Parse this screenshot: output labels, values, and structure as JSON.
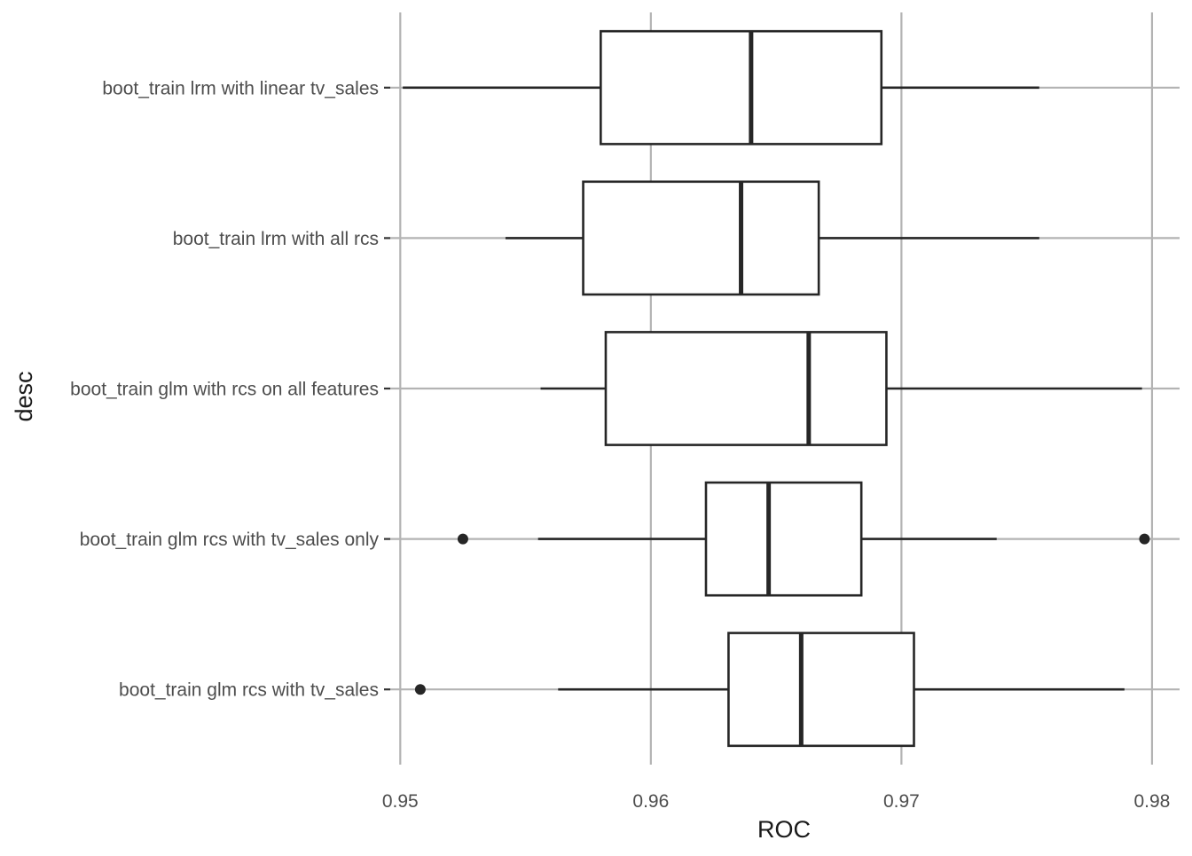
{
  "chart_data": {
    "type": "boxplot",
    "orientation": "horizontal",
    "xlabel": "ROC",
    "ylabel": "desc",
    "xlim": [
      0.9496,
      0.9811
    ],
    "xticks": [
      0.95,
      0.96,
      0.97,
      0.98
    ],
    "xtick_labels": [
      "0.95",
      "0.96",
      "0.97",
      "0.98"
    ],
    "grid": true,
    "legend": "none",
    "categories": [
      "boot_train lrm with linear tv_sales",
      "boot_train lrm with all rcs",
      "boot_train glm with rcs on all features",
      "boot_train glm rcs with tv_sales only",
      "boot_train glm rcs with tv_sales"
    ],
    "boxes": [
      {
        "category": "boot_train lrm with linear tv_sales",
        "whisker_low": 0.9501,
        "q1": 0.958,
        "median": 0.964,
        "q3": 0.9692,
        "whisker_high": 0.9755,
        "outliers": []
      },
      {
        "category": "boot_train lrm with all rcs",
        "whisker_low": 0.9542,
        "q1": 0.9573,
        "median": 0.9636,
        "q3": 0.9667,
        "whisker_high": 0.9755,
        "outliers": []
      },
      {
        "category": "boot_train glm with rcs on all features",
        "whisker_low": 0.9556,
        "q1": 0.9582,
        "median": 0.9663,
        "q3": 0.9694,
        "whisker_high": 0.9796,
        "outliers": []
      },
      {
        "category": "boot_train glm rcs with tv_sales only",
        "whisker_low": 0.9555,
        "q1": 0.9622,
        "median": 0.9647,
        "q3": 0.9684,
        "whisker_high": 0.9738,
        "outliers": [
          0.9525,
          0.9797
        ]
      },
      {
        "category": "boot_train glm rcs with tv_sales",
        "whisker_low": 0.9563,
        "q1": 0.9631,
        "median": 0.966,
        "q3": 0.9705,
        "whisker_high": 0.9789,
        "outliers": [
          0.9508
        ]
      }
    ]
  }
}
